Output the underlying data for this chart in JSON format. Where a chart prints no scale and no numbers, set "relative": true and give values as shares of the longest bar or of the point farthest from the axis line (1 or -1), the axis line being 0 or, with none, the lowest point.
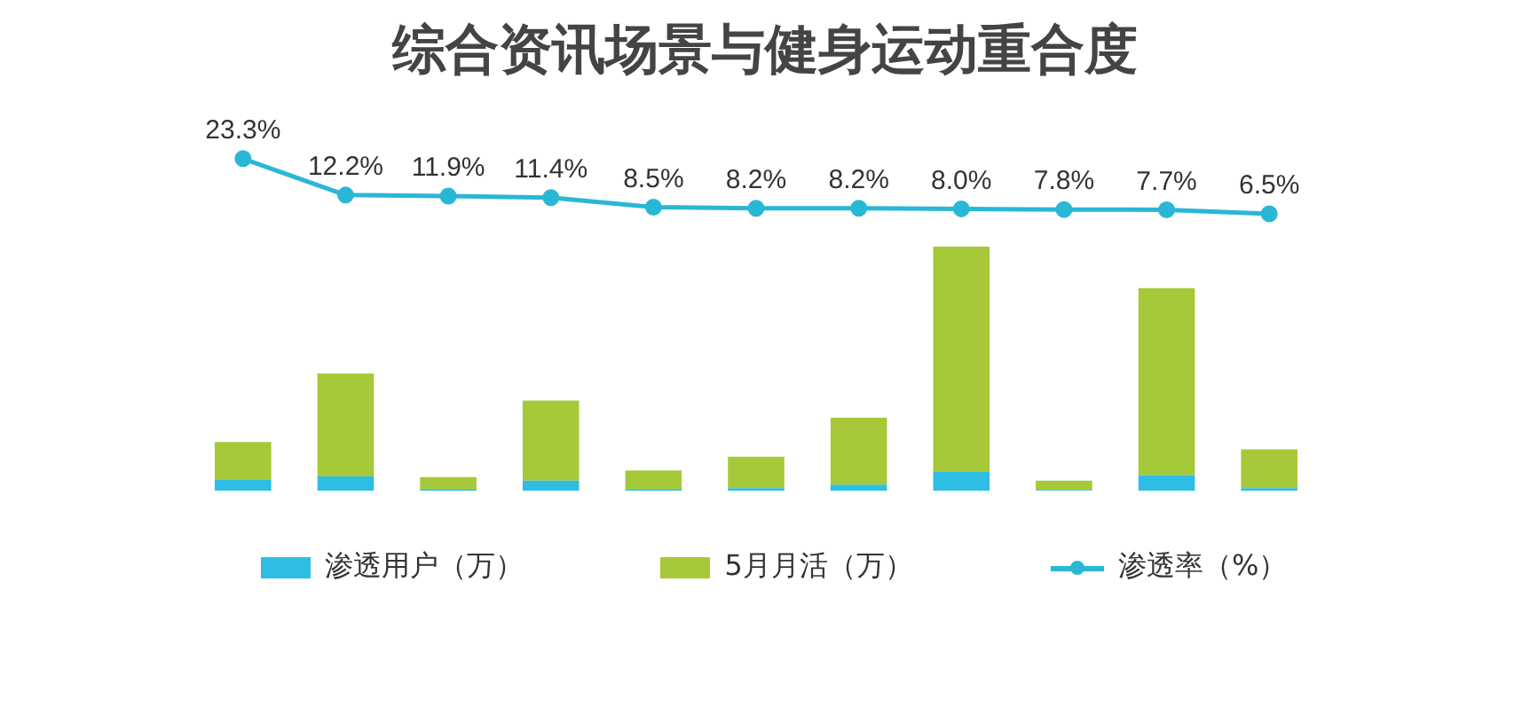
{
  "chart_data": [
    {
      "type": "line",
      "title": "综合资讯场景与健身运动重合度",
      "legend": "bottom",
      "grid": false,
      "tick_labels": false,
      "marker": "circle",
      "categories": [
        null,
        null,
        null,
        null,
        null,
        null,
        null,
        null,
        null,
        null,
        null
      ],
      "series": [
        {
          "name": "渗透率（%）",
          "color": "#2ab7d6",
          "values": [
            23.3,
            12.2,
            11.9,
            11.4,
            8.5,
            8.2,
            8.2,
            8.0,
            7.8,
            7.7,
            6.5
          ],
          "value_labels": [
            "23.3%",
            "12.2%",
            "11.9%",
            "11.4%",
            "8.5%",
            "8.2%",
            "8.2%",
            "8.0%",
            "7.8%",
            "7.7%",
            "6.5%"
          ]
        }
      ]
    },
    {
      "type": "bar",
      "relative": true,
      "stacked": true,
      "legend": "bottom",
      "grid": false,
      "categories": [
        null,
        null,
        null,
        null,
        null,
        null,
        null,
        null,
        null,
        null,
        null
      ],
      "series": [
        {
          "name": "渗透用户（万）",
          "color": "#2ebde3",
          "values": [
            0.047,
            0.059,
            0.007,
            0.042,
            0.007,
            0.011,
            0.025,
            0.08,
            0.003,
            0.064,
            0.011
          ]
        },
        {
          "name": "5月月活（万）",
          "color": "#a6c93a",
          "values": [
            0.153,
            0.421,
            0.049,
            0.328,
            0.076,
            0.129,
            0.275,
            0.92,
            0.039,
            0.766,
            0.159
          ]
        }
      ]
    }
  ]
}
